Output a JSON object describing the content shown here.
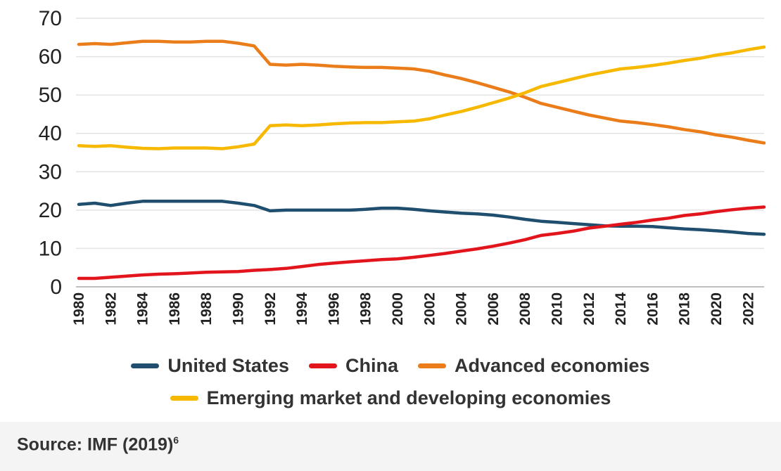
{
  "chart_data": {
    "type": "line",
    "title": "",
    "xlabel": "",
    "ylabel": "",
    "ylim": [
      0,
      70
    ],
    "yticks": [
      0,
      10,
      20,
      30,
      40,
      50,
      60,
      70
    ],
    "xlim": [
      1980,
      2023
    ],
    "xticks": [
      "1980",
      "1982",
      "1984",
      "1986",
      "1988",
      "1990",
      "1992",
      "1994",
      "1996",
      "1998",
      "2000",
      "2002",
      "2004",
      "2006",
      "2008",
      "2010",
      "2012",
      "2014",
      "2016",
      "2018",
      "2020",
      "2022"
    ],
    "grid": "horizontal",
    "legend_position": "bottom",
    "x": [
      1980,
      1981,
      1982,
      1983,
      1984,
      1985,
      1986,
      1987,
      1988,
      1989,
      1990,
      1991,
      1992,
      1993,
      1994,
      1995,
      1996,
      1997,
      1998,
      1999,
      2000,
      2001,
      2002,
      2003,
      2004,
      2005,
      2006,
      2007,
      2008,
      2009,
      2010,
      2011,
      2012,
      2013,
      2014,
      2015,
      2016,
      2017,
      2018,
      2019,
      2020,
      2021,
      2022,
      2023
    ],
    "series": [
      {
        "name": "United States",
        "color": "#1f4e6e",
        "values": [
          21.5,
          21.8,
          21.2,
          21.8,
          22.3,
          22.3,
          22.3,
          22.3,
          22.3,
          22.3,
          21.8,
          21.2,
          19.8,
          20.0,
          20.0,
          20.0,
          20.0,
          20.0,
          20.2,
          20.5,
          20.5,
          20.2,
          19.8,
          19.5,
          19.2,
          19.0,
          18.7,
          18.2,
          17.6,
          17.1,
          16.8,
          16.5,
          16.2,
          15.9,
          15.8,
          15.8,
          15.7,
          15.4,
          15.1,
          14.9,
          14.6,
          14.3,
          13.9,
          13.7
        ]
      },
      {
        "name": "China",
        "color": "#e2141c",
        "values": [
          2.2,
          2.2,
          2.5,
          2.8,
          3.1,
          3.3,
          3.4,
          3.6,
          3.8,
          3.9,
          4.0,
          4.3,
          4.5,
          4.8,
          5.3,
          5.8,
          6.2,
          6.5,
          6.8,
          7.1,
          7.3,
          7.7,
          8.2,
          8.7,
          9.3,
          9.9,
          10.6,
          11.4,
          12.3,
          13.4,
          13.9,
          14.5,
          15.3,
          15.8,
          16.3,
          16.8,
          17.4,
          17.9,
          18.6,
          19.0,
          19.6,
          20.1,
          20.5,
          20.8
        ]
      },
      {
        "name": "Advanced economies",
        "color": "#ea7d1a",
        "values": [
          63.2,
          63.4,
          63.2,
          63.6,
          64.0,
          64.0,
          63.8,
          63.8,
          64.0,
          64.0,
          63.5,
          62.8,
          58.0,
          57.8,
          58.0,
          57.8,
          57.5,
          57.3,
          57.2,
          57.2,
          57.0,
          56.8,
          56.2,
          55.2,
          54.3,
          53.2,
          52.0,
          50.8,
          49.4,
          47.8,
          46.8,
          45.8,
          44.8,
          44.0,
          43.2,
          42.8,
          42.3,
          41.7,
          41.0,
          40.4,
          39.6,
          39.0,
          38.2,
          37.5
        ]
      },
      {
        "name": "Emerging market and developing economies",
        "color": "#f7b800",
        "values": [
          36.8,
          36.6,
          36.8,
          36.4,
          36.1,
          36.0,
          36.2,
          36.2,
          36.2,
          36.0,
          36.5,
          37.2,
          42.0,
          42.2,
          42.0,
          42.2,
          42.5,
          42.7,
          42.8,
          42.8,
          43.0,
          43.2,
          43.8,
          44.8,
          45.7,
          46.8,
          48.0,
          49.2,
          50.6,
          52.2,
          53.2,
          54.2,
          55.2,
          56.0,
          56.8,
          57.2,
          57.7,
          58.3,
          59.0,
          59.6,
          60.4,
          61.0,
          61.8,
          62.5
        ]
      }
    ],
    "legend_rows": [
      [
        0,
        1,
        2
      ],
      [
        3
      ]
    ]
  },
  "source_note": {
    "text": "Source: IMF (2019)",
    "footnote": "6"
  }
}
